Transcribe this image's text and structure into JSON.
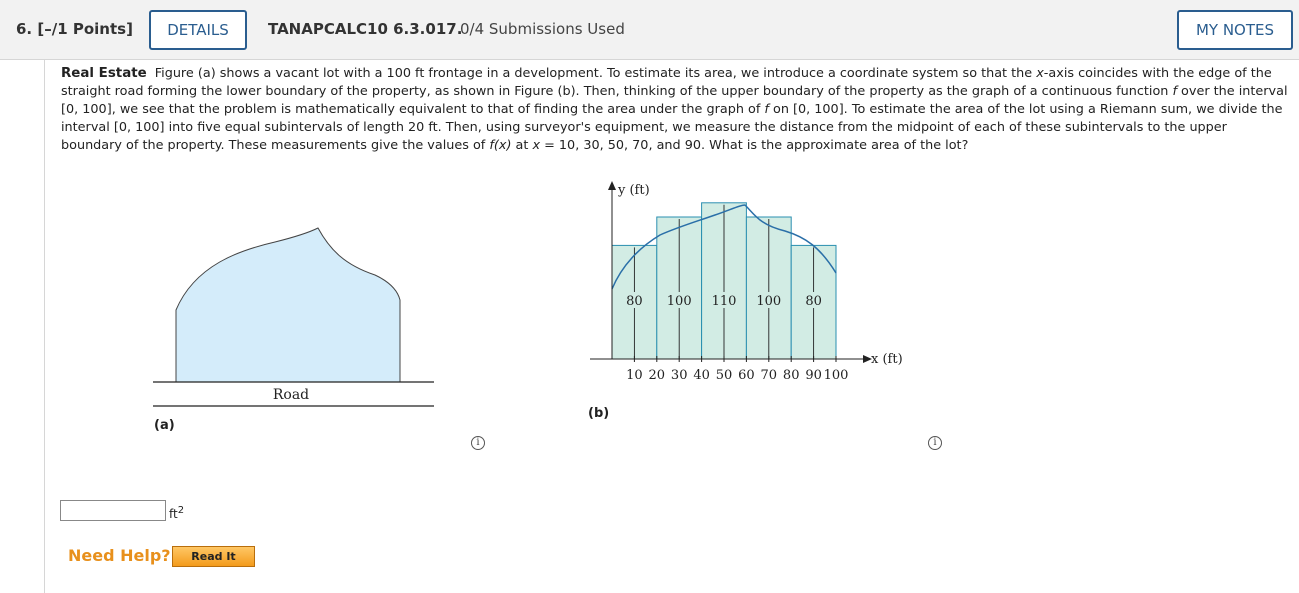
{
  "header": {
    "question_number": "6.  [–/1 Points]",
    "details_label": "DETAILS",
    "problem_code": "TANAPCALC10 6.3.017.",
    "submissions": "0/4 Submissions Used",
    "my_notes_label": "MY NOTES"
  },
  "problem": {
    "lead": "Real Estate",
    "t1": "Figure (a) shows a vacant lot with a 100 ft frontage in a development. To estimate its area, we introduce a coordinate system so that the ",
    "x_var": "x",
    "t2": "-axis coincides with the edge of the straight road forming the lower boundary of the property, as shown in Figure (b). Then, thinking of the upper boundary of the property as the graph of a continuous function ",
    "f_var": "f",
    "t3": " over the interval [0, 100], we see that the problem is mathematically equivalent to that of finding the area under the graph of ",
    "f_var2": "f",
    "t4": " on [0, 100]. To estimate the area of the lot using a Riemann sum, we divide the interval [0, 100] into five equal subintervals of length 20 ft. Then, using surveyor's equipment, we measure the distance from the midpoint of each of these subintervals to the upper boundary of the property. These measurements give the values of ",
    "fx_var": "f(x)",
    "t5": " at ",
    "x_var2": "x",
    "t6": " = 10, 30, 50, 70, and 90. What is the approximate area of the lot?"
  },
  "figure_a": {
    "road_label": "Road",
    "caption": "(a)"
  },
  "figure_b": {
    "y_label": "y (ft)",
    "x_label": "x (ft)",
    "caption": "(b)",
    "x_ticks": [
      "10",
      "20",
      "30",
      "40",
      "50",
      "60",
      "70",
      "80",
      "90",
      "100"
    ],
    "bar_labels": [
      "80",
      "100",
      "110",
      "100",
      "80"
    ],
    "bar_heights": [
      80,
      100,
      110,
      100,
      80
    ]
  },
  "answer": {
    "value": "",
    "unit": "ft",
    "unit_exp": "2"
  },
  "help": {
    "label": "Need Help?",
    "read_it": "Read It"
  },
  "colors": {
    "accent": "#2a5d8f",
    "lot_fill": "#d4ecfa",
    "bar_fill": "#d2ece4",
    "help": "#e8901c"
  }
}
